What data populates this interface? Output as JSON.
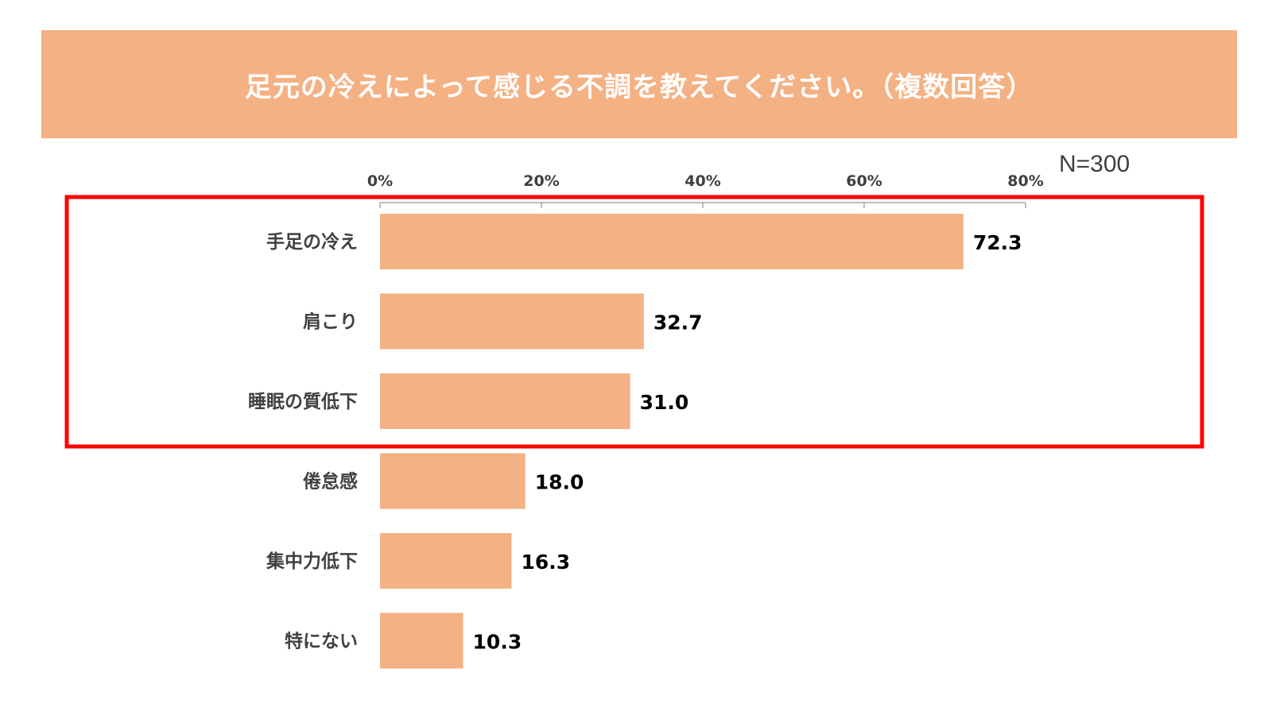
{
  "header": {
    "title": "足元の冷えによって感じる不調を教えてください。（複数回答）"
  },
  "sample_size": "N=300",
  "colors": {
    "bar": "#F4B183",
    "header_bg": "#F4B183",
    "highlight_border": "#FF0000",
    "axis": "#A6A6A6"
  },
  "chart_data": {
    "type": "bar",
    "orientation": "horizontal",
    "title": "足元の冷えによって感じる不調を教えてください。（複数回答）",
    "categories": [
      "手足の冷え",
      "肩こり",
      "睡眠の質低下",
      "倦怠感",
      "集中力低下",
      "特にない"
    ],
    "values": [
      72.3,
      32.7,
      31.0,
      18.0,
      16.3,
      10.3
    ],
    "value_labels": [
      "72.3",
      "32.7",
      "31.0",
      "18.0",
      "16.3",
      "10.3"
    ],
    "xlim": [
      0,
      80
    ],
    "x_ticks": [
      0,
      20,
      40,
      60,
      80
    ],
    "x_tick_labels": [
      "0%",
      "20%",
      "40%",
      "60%",
      "80%"
    ],
    "xlabel": "",
    "ylabel": "",
    "grid": false,
    "axis_position": "top",
    "highlighted_categories": [
      "手足の冷え",
      "肩こり",
      "睡眠の質低下"
    ]
  }
}
